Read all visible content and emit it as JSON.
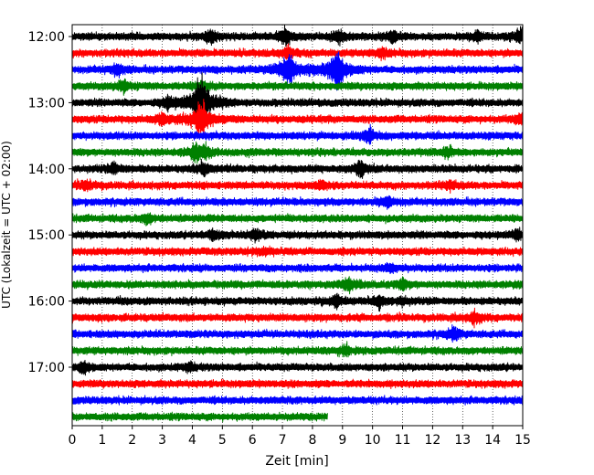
{
  "chart_data": {
    "type": "line",
    "title": "",
    "xlabel": "Zeit  [min]",
    "ylabel": "UTC (Lokalzeit = UTC + 02:00)",
    "xlim": [
      0,
      15
    ],
    "x_ticks": [
      "0",
      "1",
      "2",
      "3",
      "4",
      "5",
      "6",
      "7",
      "8",
      "9",
      "10",
      "11",
      "12",
      "13",
      "14",
      "15"
    ],
    "y_ticks": [
      {
        "label": "12:00",
        "row": 0
      },
      {
        "label": "13:00",
        "row": 4
      },
      {
        "label": "14:00",
        "row": 8
      },
      {
        "label": "15:00",
        "row": 12
      },
      {
        "label": "16:00",
        "row": 16
      },
      {
        "label": "17:00",
        "row": 20
      }
    ],
    "grid": "vertical dotted",
    "row_minutes": 15,
    "row_colors": [
      "#000000",
      "#ff0000",
      "#0000ff",
      "#008000"
    ],
    "traces": [
      {
        "start": "12:00",
        "events": [
          [
            4.6,
            0.6
          ],
          [
            7.1,
            0.8
          ],
          [
            8.9,
            0.5
          ],
          [
            10.7,
            0.5
          ],
          [
            13.5,
            0.5
          ],
          [
            14.9,
            0.6
          ]
        ]
      },
      {
        "start": "12:15",
        "events": [
          [
            7.2,
            0.6
          ],
          [
            10.3,
            0.4
          ]
        ]
      },
      {
        "start": "12:30",
        "events": [
          [
            1.5,
            0.5
          ],
          [
            7.2,
            1.5
          ],
          [
            8.8,
            1.7
          ]
        ]
      },
      {
        "start": "12:45",
        "events": [
          [
            1.7,
            0.5
          ],
          [
            4.3,
            0.4
          ]
        ]
      },
      {
        "start": "13:00",
        "events": [
          [
            3.2,
            0.5
          ],
          [
            4.3,
            2.5
          ]
        ]
      },
      {
        "start": "13:15",
        "events": [
          [
            3.0,
            0.5
          ],
          [
            4.3,
            1.6
          ],
          [
            14.9,
            0.4
          ]
        ]
      },
      {
        "start": "13:30",
        "events": [
          [
            9.9,
            0.6
          ]
        ]
      },
      {
        "start": "13:45",
        "events": [
          [
            4.1,
            0.5
          ],
          [
            4.4,
            0.6
          ],
          [
            12.5,
            0.4
          ]
        ]
      },
      {
        "start": "14:00",
        "events": [
          [
            1.4,
            0.4
          ],
          [
            4.4,
            0.5
          ],
          [
            9.6,
            0.7
          ]
        ]
      },
      {
        "start": "14:15",
        "events": [
          [
            0.5,
            0.4
          ],
          [
            8.3,
            0.3
          ],
          [
            12.6,
            0.3
          ]
        ]
      },
      {
        "start": "14:30",
        "events": [
          [
            10.5,
            0.5
          ]
        ]
      },
      {
        "start": "14:45",
        "events": [
          [
            2.5,
            0.4
          ]
        ]
      },
      {
        "start": "15:00",
        "events": [
          [
            4.7,
            0.4
          ],
          [
            6.1,
            0.5
          ],
          [
            14.8,
            0.4
          ]
        ]
      },
      {
        "start": "15:15",
        "events": [
          [
            6.4,
            0.3
          ]
        ]
      },
      {
        "start": "15:30",
        "events": [
          [
            10.6,
            0.3
          ]
        ]
      },
      {
        "start": "15:45",
        "events": [
          [
            9.2,
            0.6
          ],
          [
            11.0,
            0.4
          ]
        ]
      },
      {
        "start": "16:00",
        "events": [
          [
            8.8,
            0.6
          ],
          [
            10.2,
            0.5
          ],
          [
            11.0,
            0.3
          ]
        ]
      },
      {
        "start": "16:15",
        "events": [
          [
            13.4,
            0.5
          ]
        ]
      },
      {
        "start": "16:30",
        "events": [
          [
            12.7,
            0.6
          ]
        ]
      },
      {
        "start": "16:45",
        "events": [
          [
            9.1,
            0.4
          ]
        ]
      },
      {
        "start": "17:00",
        "events": [
          [
            0.4,
            0.4
          ],
          [
            3.9,
            0.3
          ]
        ]
      },
      {
        "start": "17:15",
        "events": []
      },
      {
        "start": "17:30",
        "events": []
      },
      {
        "start": "17:45",
        "end_minute": 8.5,
        "events": []
      }
    ]
  }
}
